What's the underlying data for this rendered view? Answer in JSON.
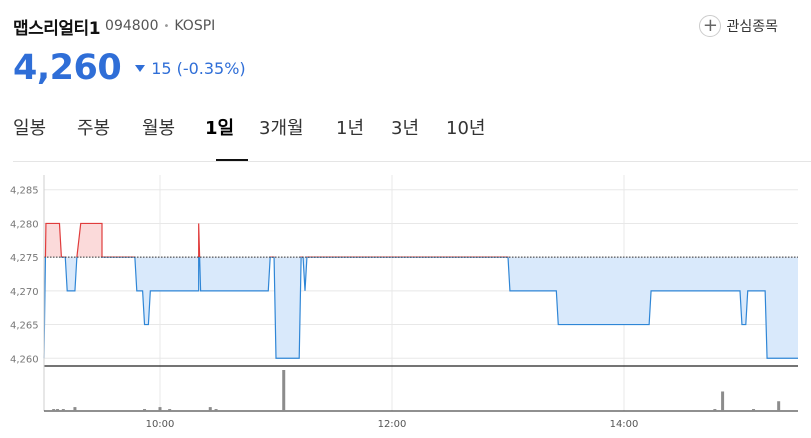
{
  "stock": {
    "name": "맵스리얼티1",
    "code": "094800",
    "market": "KOSPI",
    "price": "4,260",
    "change": "15",
    "change_pct": "(-0.35%)",
    "watch_label": "관심종목",
    "watch_icon": "plus-circle-icon",
    "change_icon": "down-triangle-icon"
  },
  "tabs": [
    {
      "label": "일봉",
      "active": false
    },
    {
      "label": "주봉",
      "active": false
    },
    {
      "label": "월봉",
      "active": false
    },
    {
      "label": "1일",
      "active": true
    },
    {
      "label": "3개월",
      "active": false
    },
    {
      "label": "1년",
      "active": false
    },
    {
      "label": "3년",
      "active": false
    },
    {
      "label": "10년",
      "active": false
    }
  ],
  "colors": {
    "price_down": "#2f6ed7",
    "line": "#2f86d6",
    "fill_below": "#d9e9fb",
    "line_above": "#e03c3c",
    "fill_above": "#fbdada",
    "volume": "#8c8c8c",
    "grid": "#e8e8e8"
  },
  "chart_data": {
    "type": "line",
    "xlabel": "",
    "ylabel": "",
    "x_range": [
      "09:00",
      "15:30"
    ],
    "ylim": [
      4259,
      4286
    ],
    "y_ticks": [
      "4,285",
      "4,280",
      "4,275",
      "4,270",
      "4,265",
      "4,260"
    ],
    "x_ticks": [
      "10:00",
      "12:00",
      "14:00"
    ],
    "reference_price": 4275,
    "grid": true,
    "series": [
      {
        "points": [
          [
            "09:00",
            4260
          ],
          [
            "09:01",
            4280
          ],
          [
            "09:08",
            4280
          ],
          [
            "09:09",
            4275
          ],
          [
            "09:11",
            4275
          ],
          [
            "09:12",
            4270
          ],
          [
            "09:16",
            4270
          ],
          [
            "09:17",
            4275
          ],
          [
            "09:19",
            4280
          ],
          [
            "09:30",
            4280
          ],
          [
            "09:30",
            4275
          ],
          [
            "09:47",
            4275
          ],
          [
            "09:48",
            4270
          ],
          [
            "09:51",
            4270
          ],
          [
            "09:52",
            4265
          ],
          [
            "09:54",
            4265
          ],
          [
            "09:55",
            4270
          ],
          [
            "10:20",
            4270
          ],
          [
            "10:20",
            4280
          ],
          [
            "10:21",
            4270
          ],
          [
            "10:56",
            4270
          ],
          [
            "10:57",
            4275
          ],
          [
            "10:59",
            4275
          ],
          [
            "11:00",
            4260
          ],
          [
            "11:12",
            4260
          ],
          [
            "11:13",
            4275
          ],
          [
            "11:14",
            4275
          ],
          [
            "11:15",
            4270
          ],
          [
            "11:16",
            4275
          ],
          [
            "13:00",
            4275
          ],
          [
            "13:01",
            4270
          ],
          [
            "13:25",
            4270
          ],
          [
            "13:26",
            4265
          ],
          [
            "14:13",
            4265
          ],
          [
            "14:14",
            4270
          ],
          [
            "15:00",
            4270
          ],
          [
            "15:01",
            4265
          ],
          [
            "15:03",
            4265
          ],
          [
            "15:04",
            4270
          ],
          [
            "15:13",
            4270
          ],
          [
            "15:14",
            4260
          ],
          [
            "15:30",
            4260
          ]
        ]
      }
    ],
    "volume": [
      [
        "09:05",
        1
      ],
      [
        "09:07",
        1
      ],
      [
        "09:10",
        1
      ],
      [
        "09:16",
        2
      ],
      [
        "09:52",
        1
      ],
      [
        "10:00",
        2
      ],
      [
        "10:05",
        1
      ],
      [
        "10:26",
        2
      ],
      [
        "10:29",
        1
      ],
      [
        "11:04",
        21
      ],
      [
        "14:47",
        1
      ],
      [
        "14:51",
        10
      ],
      [
        "15:07",
        1
      ],
      [
        "15:20",
        5
      ]
    ]
  }
}
